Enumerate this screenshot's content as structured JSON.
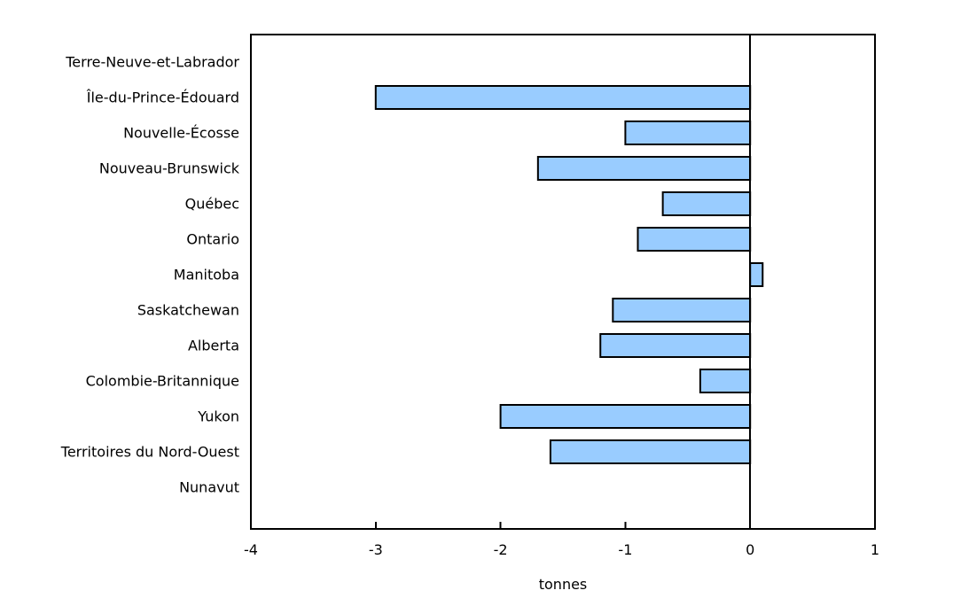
{
  "chart_data": {
    "type": "bar",
    "orientation": "horizontal",
    "categories": [
      "Terre-Neuve-et-Labrador",
      "Île-du-Prince-Édouard",
      "Nouvelle-Écosse",
      "Nouveau-Brunswick",
      "Québec",
      "Ontario",
      "Manitoba",
      "Saskatchewan",
      "Alberta",
      "Colombie-Britannique",
      "Yukon",
      "Territoires du Nord-Ouest",
      "Nunavut"
    ],
    "values": [
      0,
      -3.0,
      -1.0,
      -1.7,
      -0.7,
      -0.9,
      0.1,
      -1.1,
      -1.2,
      -0.4,
      -2.0,
      -1.6,
      0
    ],
    "xlabel": "tonnes",
    "xlim": [
      -4,
      1
    ],
    "xticks": [
      -4,
      -3,
      -2,
      -1,
      0,
      1
    ],
    "grid": false,
    "legend": "none",
    "bar_color": "#99CCFF",
    "bar_border_color": "#000000",
    "axis_color": "#000000",
    "text_color": "#000000",
    "background": "#FFFFFF"
  }
}
